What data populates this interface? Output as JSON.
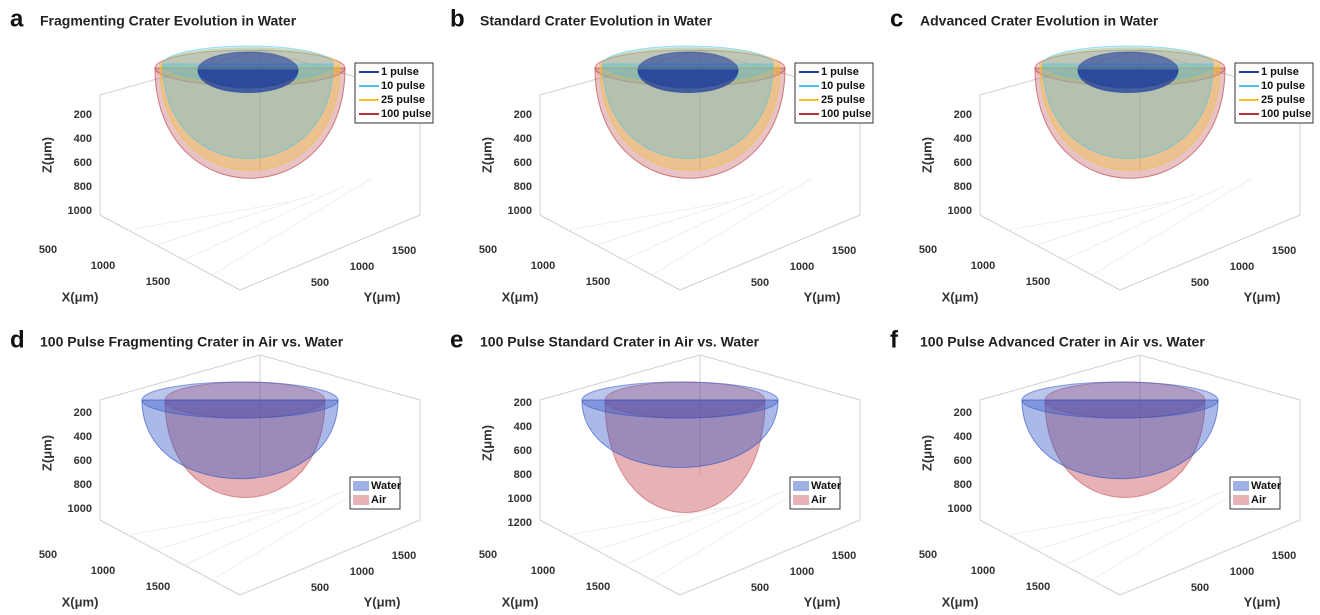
{
  "panels": [
    {
      "letter": "a",
      "title": "Fragmenting Crater Evolution in Water",
      "z_label": "Z(μm)",
      "z_ticks": [
        "200",
        "400",
        "600",
        "800",
        "1000"
      ],
      "x_label": "X(μm)",
      "x_ticks": [
        "500",
        "1000",
        "1500"
      ],
      "y_label": "Y(μm)",
      "y_ticks": [
        "500",
        "1000",
        "1500"
      ],
      "legend": [
        {
          "name": "1 pulse",
          "color": "#1f3d99"
        },
        {
          "name": "10 pulse",
          "color": "#4cc3e8"
        },
        {
          "name": "25 pulse",
          "color": "#f2c12e"
        },
        {
          "name": "100 pulse",
          "color": "#b5343a"
        }
      ]
    },
    {
      "letter": "b",
      "title": "Standard Crater Evolution in Water",
      "z_label": "Z(μm)",
      "z_ticks": [
        "200",
        "400",
        "600",
        "800",
        "1000"
      ],
      "x_label": "X(μm)",
      "x_ticks": [
        "500",
        "1000",
        "1500"
      ],
      "y_label": "Y(μm)",
      "y_ticks": [
        "500",
        "1000",
        "1500"
      ],
      "legend": [
        {
          "name": "1 pulse",
          "color": "#1f3d99"
        },
        {
          "name": "10 pulse",
          "color": "#4cc3e8"
        },
        {
          "name": "25 pulse",
          "color": "#f2c12e"
        },
        {
          "name": "100 pulse",
          "color": "#b5343a"
        }
      ]
    },
    {
      "letter": "c",
      "title": "Advanced Crater Evolution in Water",
      "z_label": "Z(μm)",
      "z_ticks": [
        "200",
        "400",
        "600",
        "800",
        "1000"
      ],
      "x_label": "X(μm)",
      "x_ticks": [
        "500",
        "1000",
        "1500"
      ],
      "y_label": "Y(μm)",
      "y_ticks": [
        "500",
        "1000",
        "1500"
      ],
      "legend": [
        {
          "name": "1 pulse",
          "color": "#1f3d99"
        },
        {
          "name": "10 pulse",
          "color": "#4cc3e8"
        },
        {
          "name": "25 pulse",
          "color": "#f2c12e"
        },
        {
          "name": "100 pulse",
          "color": "#b5343a"
        }
      ]
    },
    {
      "letter": "d",
      "title": "100 Pulse Fragmenting Crater in Air vs. Water",
      "z_label": "Z(μm)",
      "z_ticks": [
        "200",
        "400",
        "600",
        "800",
        "1000"
      ],
      "x_label": "X(μm)",
      "x_ticks": [
        "500",
        "1000",
        "1500"
      ],
      "y_label": "Y(μm)",
      "y_ticks": [
        "500",
        "1000",
        "1500"
      ],
      "legend": [
        {
          "name": "Water",
          "color": "#2b4fc4"
        },
        {
          "name": "Air",
          "color": "#c9545c"
        }
      ]
    },
    {
      "letter": "e",
      "title": "100 Pulse Standard Crater in Air vs. Water",
      "z_label": "Z(μm)",
      "z_ticks": [
        "200",
        "400",
        "600",
        "800",
        "1000",
        "1200"
      ],
      "x_label": "X(μm)",
      "x_ticks": [
        "500",
        "1000",
        "1500"
      ],
      "y_label": "Y(μm)",
      "y_ticks": [
        "500",
        "1000",
        "1500"
      ],
      "legend": [
        {
          "name": "Water",
          "color": "#2b4fc4"
        },
        {
          "name": "Air",
          "color": "#c9545c"
        }
      ]
    },
    {
      "letter": "f",
      "title": "100 Pulse Advanced Crater in Air vs. Water",
      "z_label": "Z(μm)",
      "z_ticks": [
        "200",
        "400",
        "600",
        "800",
        "1000"
      ],
      "x_label": "X(μm)",
      "x_ticks": [
        "500",
        "1000",
        "1500"
      ],
      "y_label": "Y(μm)",
      "y_ticks": [
        "500",
        "1000",
        "1500"
      ],
      "legend": [
        {
          "name": "Water",
          "color": "#2b4fc4"
        },
        {
          "name": "Air",
          "color": "#c9545c"
        }
      ]
    }
  ]
}
